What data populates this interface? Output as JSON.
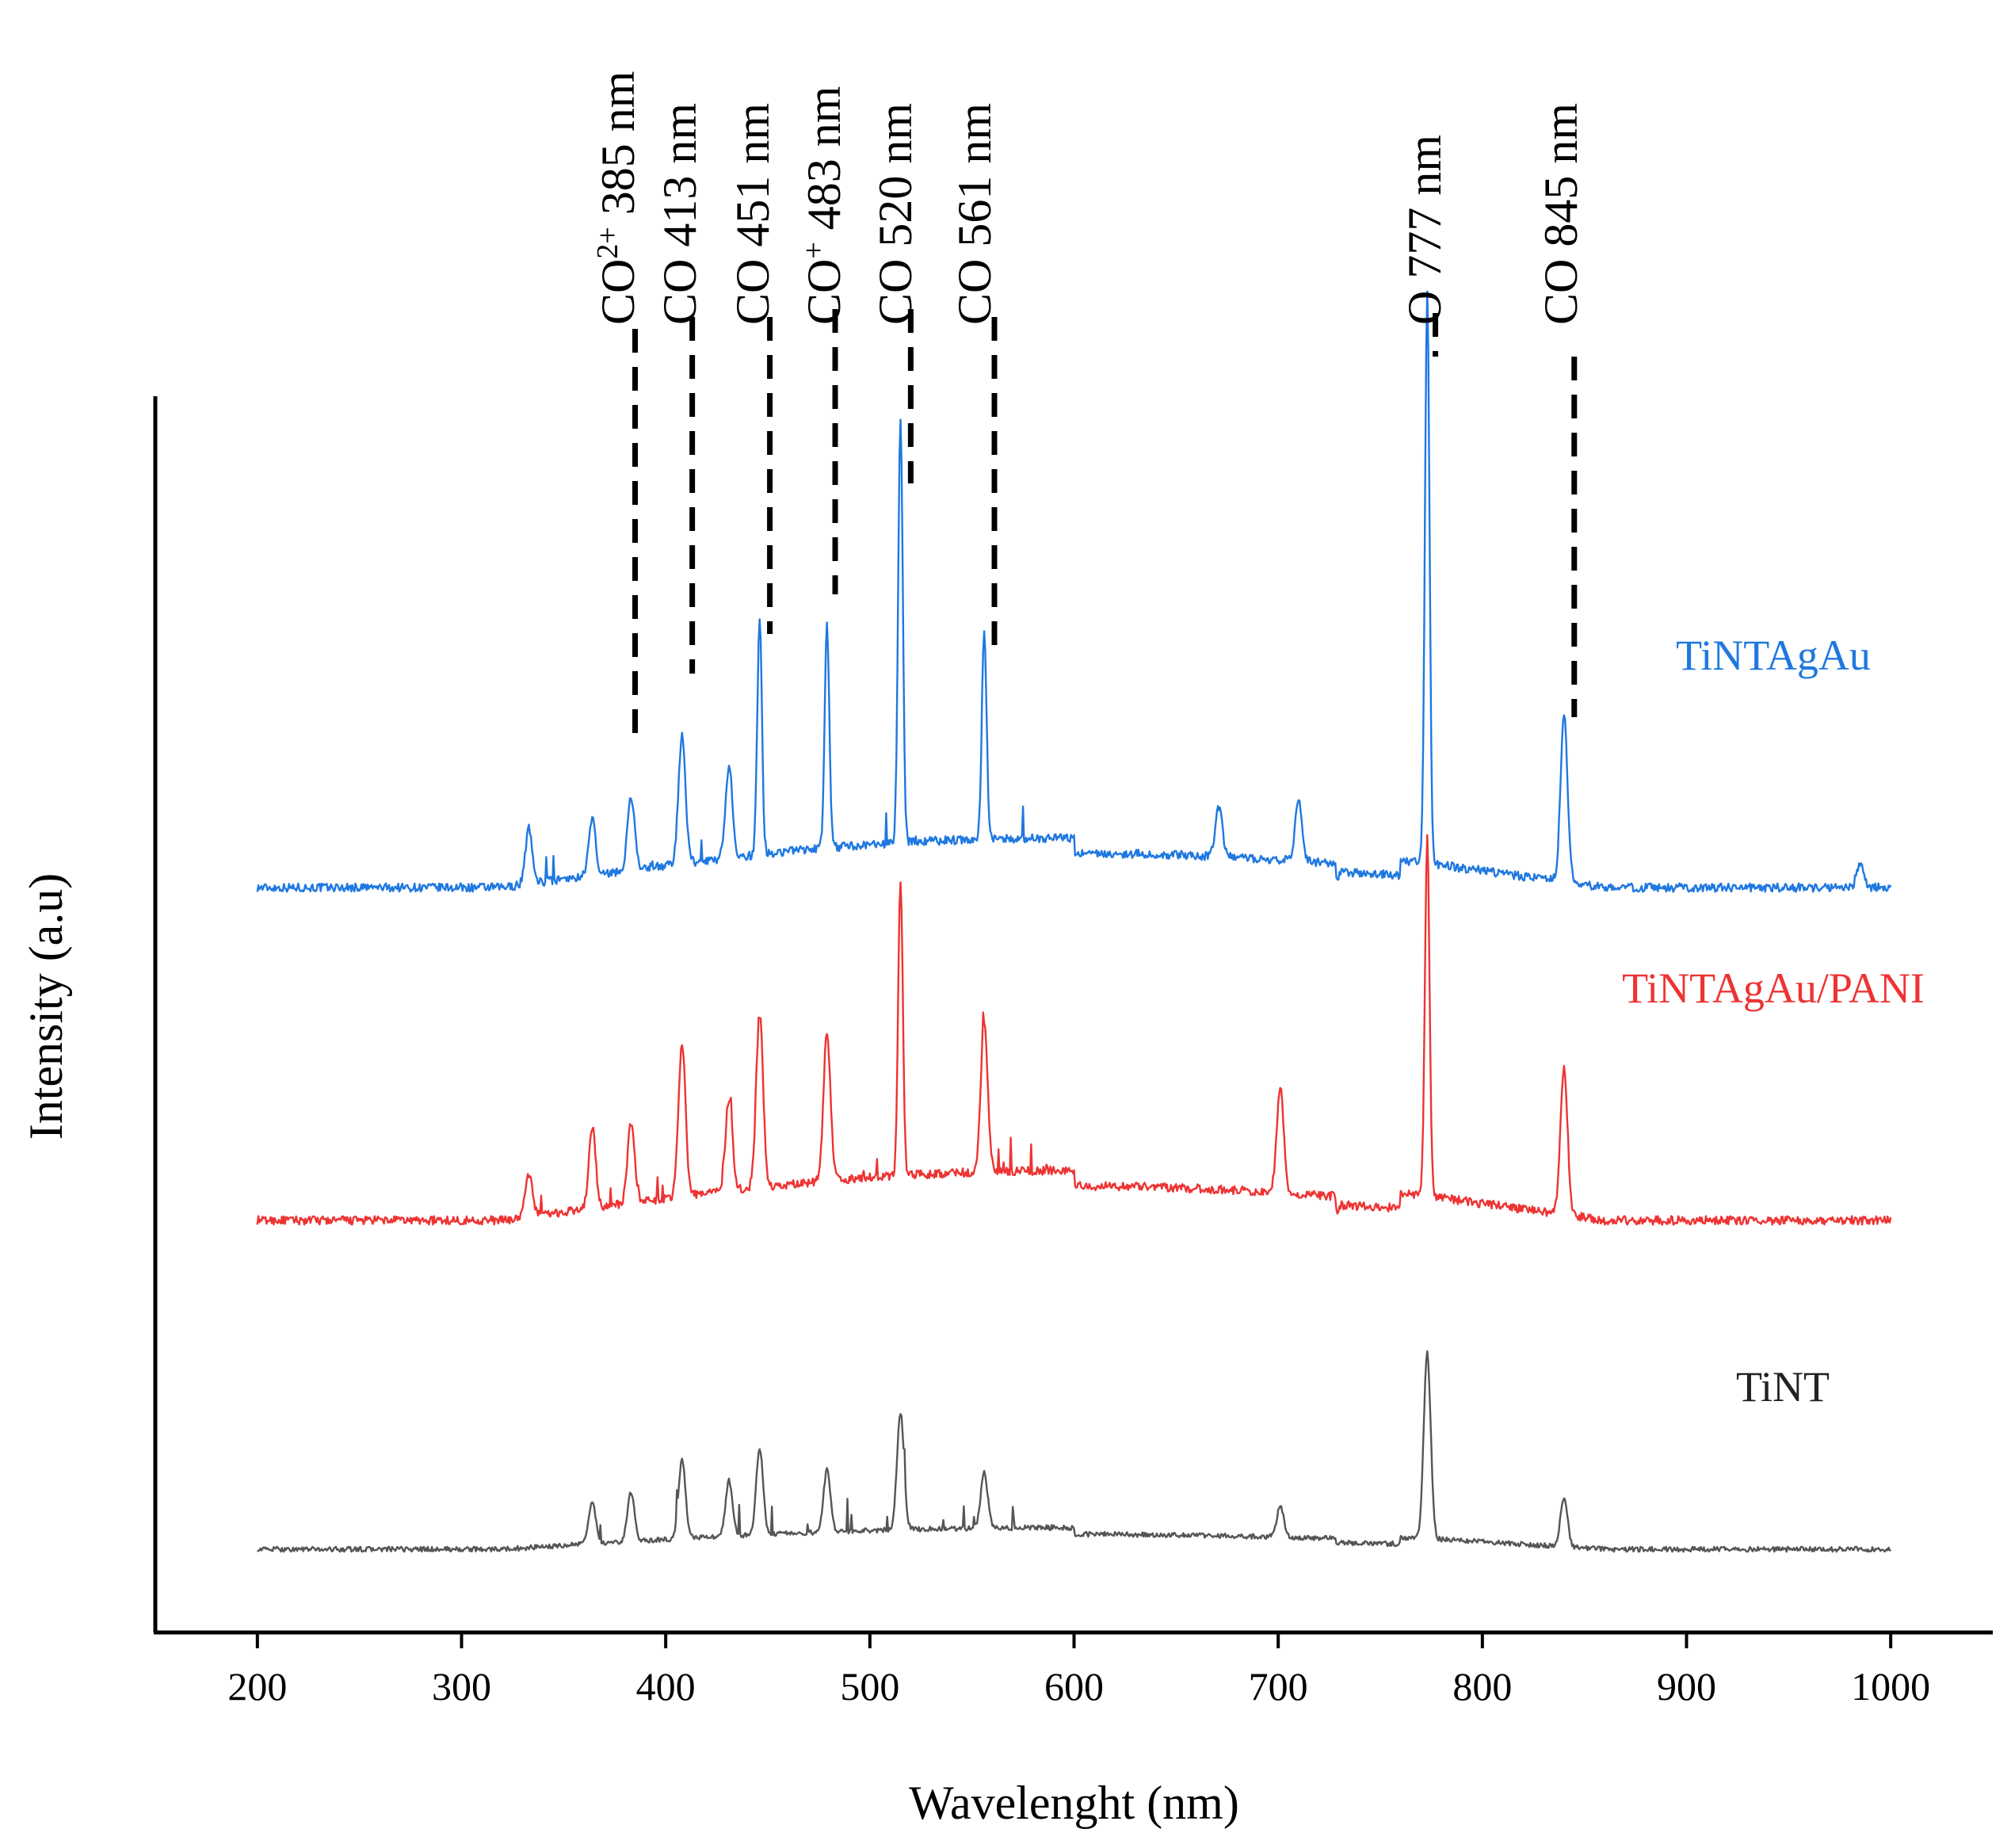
{
  "chart_data": {
    "type": "line",
    "title": "",
    "xlabel": "Wavelenght (nm)",
    "ylabel": "Intensity (a.u)",
    "xlim": [
      150,
      1050
    ],
    "x_ticks": [
      200,
      300,
      400,
      500,
      600,
      700,
      800,
      900,
      1000
    ],
    "x_tick_labels": [
      "200",
      "300",
      "400",
      "500",
      "600",
      "700",
      "800",
      "900",
      "1000"
    ],
    "grid": false,
    "legend_placement": "inline-right",
    "series": [
      {
        "name": "TiNTAgAu",
        "color": "#1f78e0",
        "peaks": [
          {
            "x": 333,
            "h": 0.09
          },
          {
            "x": 364,
            "h": 0.09
          },
          {
            "x": 383,
            "h": 0.12
          },
          {
            "x": 408,
            "h": 0.21
          },
          {
            "x": 431,
            "h": 0.15
          },
          {
            "x": 446,
            "h": 0.38
          },
          {
            "x": 479,
            "h": 0.36
          },
          {
            "x": 515,
            "h": 0.68
          },
          {
            "x": 556,
            "h": 0.34
          },
          {
            "x": 671,
            "h": 0.08
          },
          {
            "x": 710,
            "h": 0.1
          },
          {
            "x": 773,
            "h": 0.92
          },
          {
            "x": 840,
            "h": 0.27
          },
          {
            "x": 985,
            "h": 0.04
          }
        ]
      },
      {
        "name": "TiNTAgAu/PANI",
        "color": "#ee3333",
        "peaks": [
          {
            "x": 333,
            "h": 0.07
          },
          {
            "x": 364,
            "h": 0.13
          },
          {
            "x": 383,
            "h": 0.13
          },
          {
            "x": 408,
            "h": 0.25
          },
          {
            "x": 431,
            "h": 0.15
          },
          {
            "x": 446,
            "h": 0.28
          },
          {
            "x": 479,
            "h": 0.24
          },
          {
            "x": 515,
            "h": 0.48
          },
          {
            "x": 556,
            "h": 0.24
          },
          {
            "x": 701,
            "h": 0.17
          },
          {
            "x": 773,
            "h": 0.58
          },
          {
            "x": 840,
            "h": 0.24
          }
        ]
      },
      {
        "name": "TiNT",
        "color": "#555555",
        "peaks": [
          {
            "x": 364,
            "h": 0.07
          },
          {
            "x": 383,
            "h": 0.08
          },
          {
            "x": 408,
            "h": 0.13
          },
          {
            "x": 431,
            "h": 0.09
          },
          {
            "x": 446,
            "h": 0.14
          },
          {
            "x": 479,
            "h": 0.1
          },
          {
            "x": 515,
            "h": 0.19
          },
          {
            "x": 556,
            "h": 0.09
          },
          {
            "x": 701,
            "h": 0.05
          },
          {
            "x": 773,
            "h": 0.3
          },
          {
            "x": 840,
            "h": 0.08
          }
        ]
      }
    ],
    "annotations": [
      {
        "base": "CO",
        "sup": "2+",
        "rest": " 385 nm",
        "x": 385
      },
      {
        "base": "CO",
        "sup": "",
        "rest": " 413 nm",
        "x": 413
      },
      {
        "base": "CO",
        "sup": "",
        "rest": " 451 nm",
        "x": 451
      },
      {
        "base": "CO",
        "sup": "+",
        "rest": " 483 nm",
        "x": 483
      },
      {
        "base": "CO",
        "sup": "",
        "rest": " 520 nm",
        "x": 520
      },
      {
        "base": "CO",
        "sup": "",
        "rest": " 561 nm",
        "x": 561
      },
      {
        "base": "O",
        "sup": "",
        "rest": " 777 nm",
        "x": 777
      },
      {
        "base": "CO",
        "sup": "",
        "rest": " 845  nm",
        "x": 845
      }
    ]
  }
}
